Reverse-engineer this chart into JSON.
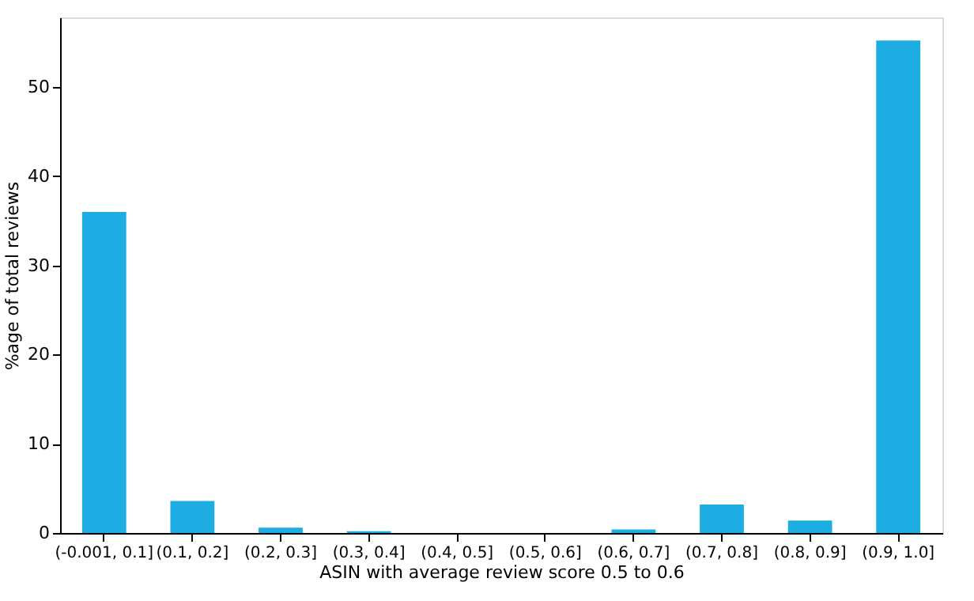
{
  "chart_data": {
    "type": "bar",
    "xlabel": "ASIN with average review score 0.5 to 0.6",
    "ylabel": "%age of total reviews",
    "categories": [
      "(-0.001, 0.1]",
      "(0.1, 0.2]",
      "(0.2, 0.3]",
      "(0.3, 0.4]",
      "(0.4, 0.5]",
      "(0.5, 0.6]",
      "(0.6, 0.7]",
      "(0.7, 0.8]",
      "(0.8, 0.9]",
      "(0.9, 1.0]"
    ],
    "values": [
      36.0,
      3.6,
      0.6,
      0.2,
      0,
      0,
      0.4,
      3.2,
      1.4,
      55.2
    ],
    "color": "#1eade3",
    "ylim": [
      0,
      57.8
    ],
    "yticks": [
      0,
      10,
      20,
      30,
      40,
      50
    ],
    "grid": false
  }
}
